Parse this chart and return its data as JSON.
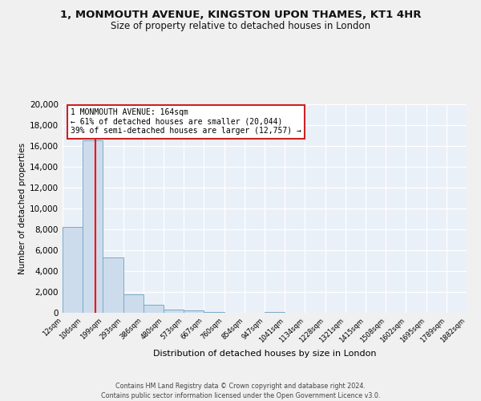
{
  "title_line1": "1, MONMOUTH AVENUE, KINGSTON UPON THAMES, KT1 4HR",
  "title_line2": "Size of property relative to detached houses in London",
  "xlabel": "Distribution of detached houses by size in London",
  "ylabel": "Number of detached properties",
  "bar_color": "#ccdcec",
  "bar_edge_color": "#7aaac8",
  "background_color": "#eaf0f8",
  "grid_color": "#ffffff",
  "fig_background": "#f0f0f0",
  "red_line_x": 164,
  "annotation_title": "1 MONMOUTH AVENUE: 164sqm",
  "annotation_line2": "← 61% of detached houses are smaller (20,044)",
  "annotation_line3": "39% of semi-detached houses are larger (12,757) →",
  "bin_edges": [
    12,
    106,
    199,
    293,
    386,
    480,
    573,
    667,
    760,
    854,
    947,
    1041,
    1134,
    1228,
    1321,
    1415,
    1508,
    1602,
    1695,
    1789,
    1882
  ],
  "bin_labels": [
    "12sqm",
    "106sqm",
    "199sqm",
    "293sqm",
    "386sqm",
    "480sqm",
    "573sqm",
    "667sqm",
    "760sqm",
    "854sqm",
    "947sqm",
    "1041sqm",
    "1134sqm",
    "1228sqm",
    "1321sqm",
    "1415sqm",
    "1508sqm",
    "1602sqm",
    "1695sqm",
    "1789sqm",
    "1882sqm"
  ],
  "bar_heights": [
    8200,
    16500,
    5300,
    1800,
    800,
    300,
    200,
    100,
    0,
    0,
    100,
    0,
    0,
    0,
    0,
    0,
    0,
    0,
    0,
    0
  ],
  "ylim": [
    0,
    20000
  ],
  "yticks": [
    0,
    2000,
    4000,
    6000,
    8000,
    10000,
    12000,
    14000,
    16000,
    18000,
    20000
  ],
  "footer_line1": "Contains HM Land Registry data © Crown copyright and database right 2024.",
  "footer_line2": "Contains public sector information licensed under the Open Government Licence v3.0."
}
